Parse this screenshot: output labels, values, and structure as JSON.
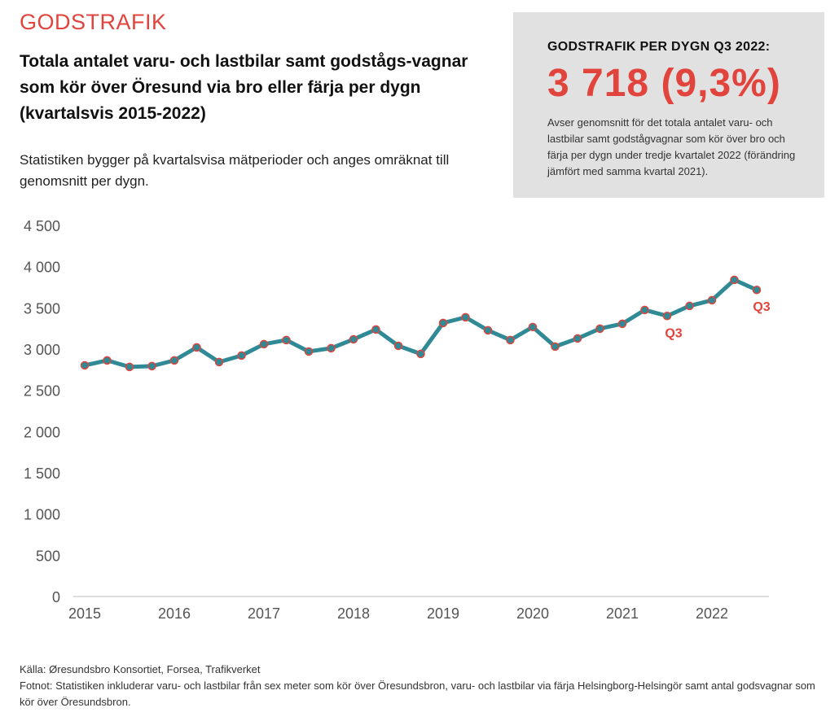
{
  "header": {
    "kicker": "GODSTRAFIK",
    "title": "Totala antalet varu- och lastbilar samt godstågs-vagnar som kör över Öresund via bro eller färja per dygn (kvartalsvis 2015-2022)",
    "subtitle": "Statistiken bygger på kvartalsvisa mätperioder och anges omräknat till genomsnitt per dygn."
  },
  "infobox": {
    "heading": "GODSTRAFIK PER DYGN Q3 2022:",
    "value": "3 718 (9,3%)",
    "text": "Avser genomsnitt för det totala antalet varu- och lastbilar samt godstågvagnar som kör över bro och färja per dygn under tredje kvartalet 2022 (förändring jämfört med samma kvartal 2021)."
  },
  "footer": {
    "source": "Källa: Øresundsbro Konsortiet, Forsea, Trafikverket",
    "note": "Fotnot: Statistiken inkluderar varu- och lastbilar från sex meter som kör över Öresundsbron, varu- och lastbilar via färja Helsingborg-Helsingör samt antal godsvagnar som kör över Öresundsbron."
  },
  "colors": {
    "line": "#2f8a96",
    "marker_edge": "#e0443c",
    "accent": "#e0443c"
  },
  "chart_data": {
    "type": "line",
    "title": "",
    "xlabel": "",
    "ylabel": "",
    "ylim": [
      0,
      4500
    ],
    "yticks": [
      0,
      500,
      1000,
      1500,
      2000,
      2500,
      3000,
      3500,
      4000,
      4500
    ],
    "ytick_labels": [
      "0",
      "500",
      "1 000",
      "1 500",
      "2 000",
      "2 500",
      "3 000",
      "3 500",
      "4 000",
      "4 500"
    ],
    "xtick_labels": [
      "2015",
      "2016",
      "2017",
      "2018",
      "2019",
      "2020",
      "2021",
      "2022"
    ],
    "grid": false,
    "series": [
      {
        "name": "Godstrafik per dygn",
        "x_start_year": 2015,
        "values": [
          2803,
          2863,
          2784,
          2794,
          2863,
          3021,
          2843,
          2922,
          3060,
          3110,
          2971,
          3011,
          3119,
          3238,
          3040,
          2942,
          3317,
          3386,
          3228,
          3110,
          3268,
          3031,
          3129,
          3248,
          3307,
          3475,
          3402,
          3524,
          3593,
          3840,
          3718
        ]
      }
    ],
    "annotations": [
      {
        "index": 26,
        "text": "Q3"
      },
      {
        "index": 30,
        "text": "Q3"
      }
    ]
  }
}
